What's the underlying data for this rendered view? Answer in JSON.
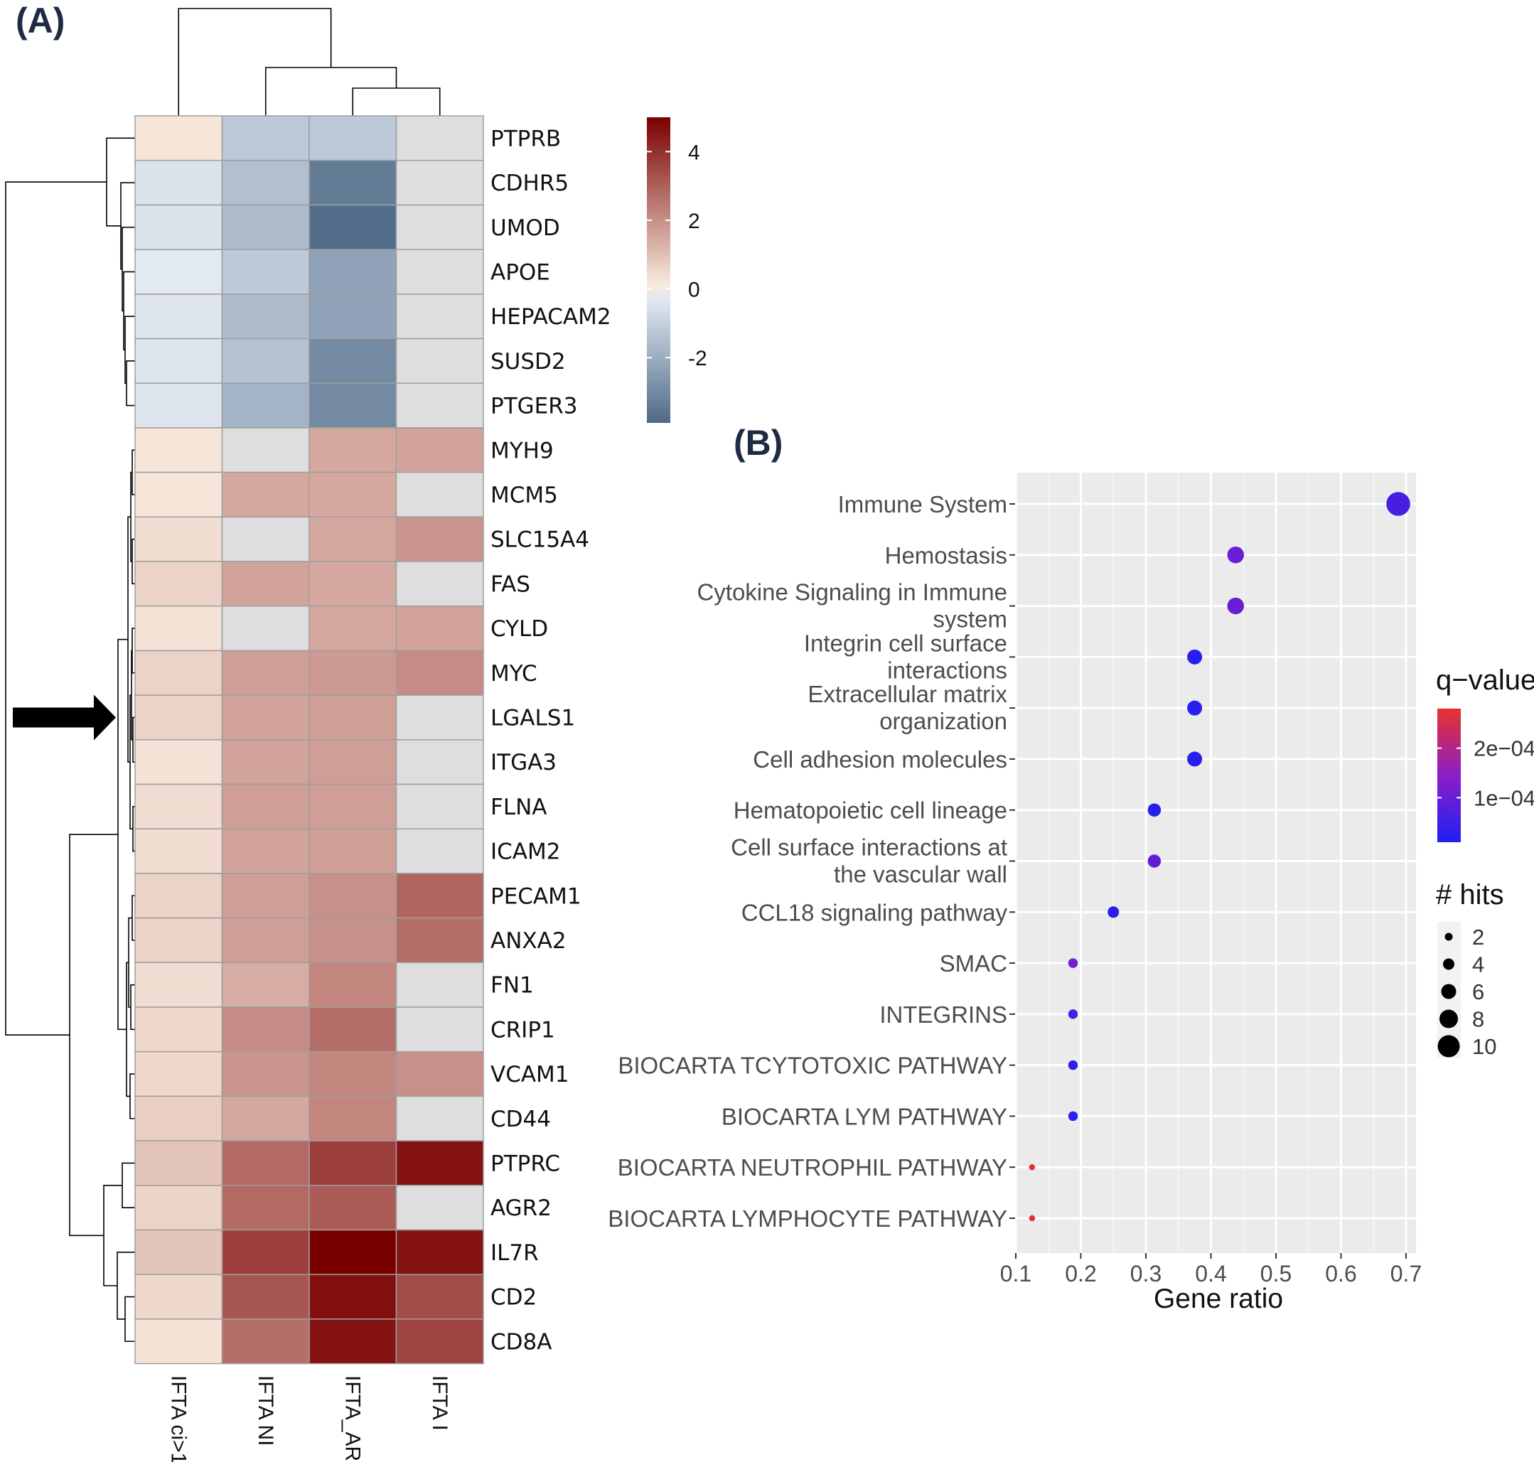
{
  "colors": {
    "panel_label": "#1f2a44",
    "heat_low": "#4e6a87",
    "heat_mid": "#fbf0e3",
    "heat_mid_blue": "#eef3fb",
    "heat_high": "#7a0000",
    "grid_bg": "#ebebeb",
    "q_high": "#e8322c",
    "q_low": "#1f1ff2",
    "arrow": "#000000"
  },
  "chart_data": [
    {
      "panel_label": "(A)",
      "type": "heatmap",
      "title": "",
      "columns": [
        "IFTA ci>1",
        "IFTA NI",
        "IFTA_AR",
        "IFTA I"
      ],
      "rows": [
        "PTPRB",
        "CDHR5",
        "UMOD",
        "APOE",
        "HEPACAM2",
        "SUSD2",
        "PTGER3",
        "MYH9",
        "MCM5",
        "SLC15A4",
        "FAS",
        "CYLD",
        "MYC",
        "LGALS1",
        "ITGA3",
        "FLNA",
        "ICAM2",
        "PECAM1",
        "ANXA2",
        "FN1",
        "CRIP1",
        "VCAM1",
        "CD44",
        "PTPRC",
        "AGR2",
        "IL7R",
        "CD2",
        "CD8A"
      ],
      "values": [
        [
          0.2,
          -1.2,
          -1.2,
          null
        ],
        [
          -0.5,
          -1.5,
          -3.4,
          null
        ],
        [
          -0.5,
          -1.6,
          -3.8,
          null
        ],
        [
          -0.3,
          -1.2,
          -2.3,
          null
        ],
        [
          -0.4,
          -1.6,
          -2.3,
          null
        ],
        [
          -0.4,
          -1.4,
          -3.0,
          null
        ],
        [
          -0.4,
          -1.8,
          -3.0,
          null
        ],
        [
          0.2,
          null,
          1.5,
          1.6
        ],
        [
          0.2,
          1.5,
          1.5,
          null
        ],
        [
          0.4,
          null,
          1.5,
          1.9
        ],
        [
          0.6,
          1.6,
          1.5,
          null
        ],
        [
          0.3,
          null,
          1.5,
          1.6
        ],
        [
          0.6,
          1.7,
          1.8,
          2.1
        ],
        [
          0.6,
          1.6,
          1.7,
          null
        ],
        [
          0.3,
          1.6,
          1.7,
          null
        ],
        [
          0.4,
          1.7,
          1.7,
          null
        ],
        [
          0.4,
          1.6,
          1.7,
          null
        ],
        [
          0.6,
          1.7,
          2.0,
          2.9
        ],
        [
          0.6,
          1.7,
          2.0,
          2.7
        ],
        [
          0.4,
          1.4,
          2.2,
          null
        ],
        [
          0.5,
          2.1,
          2.7,
          null
        ],
        [
          0.5,
          1.9,
          2.2,
          2.0
        ],
        [
          0.7,
          1.5,
          2.2,
          null
        ],
        [
          0.9,
          2.8,
          3.7,
          4.6
        ],
        [
          0.6,
          2.8,
          3.1,
          null
        ],
        [
          0.9,
          3.7,
          5.0,
          4.6
        ],
        [
          0.5,
          3.2,
          4.7,
          3.4
        ],
        [
          0.3,
          2.7,
          4.6,
          3.6
        ]
      ],
      "missing_value_note": "null = grey cell",
      "color_scale": {
        "min": -3.9,
        "max": 5.0,
        "ticks": [
          4,
          2,
          0,
          -2
        ]
      },
      "highlight_row_arrow_at": "LGALS1",
      "dendrograms": {
        "rows": true,
        "columns": true
      }
    },
    {
      "panel_label": "(B)",
      "type": "scatter",
      "title": "",
      "xlabel": "Gene ratio",
      "ylabel": "",
      "xlim": [
        0.1,
        0.7
      ],
      "xticks": [
        "0.1",
        "0.2",
        "0.3",
        "0.4",
        "0.5",
        "0.6",
        "0.7"
      ],
      "categories": [
        [
          "Immune System"
        ],
        [
          "Hemostasis"
        ],
        [
          "Cytokine Signaling in Immune",
          "system"
        ],
        [
          "Integrin cell surface",
          "interactions"
        ],
        [
          "Extracellular matrix",
          "organization"
        ],
        [
          "Cell adhesion molecules"
        ],
        [
          "Hematopoietic cell lineage"
        ],
        [
          "Cell surface interactions at",
          "the vascular wall"
        ],
        [
          "CCL18 signaling pathway"
        ],
        [
          "SMAC"
        ],
        [
          "INTEGRINS"
        ],
        [
          "BIOCARTA TCYTOTOXIC PATHWAY"
        ],
        [
          "BIOCARTA LYM PATHWAY"
        ],
        [
          "BIOCARTA NEUTROPHIL PATHWAY"
        ],
        [
          "BIOCARTA LYMPHOCYTE PATHWAY"
        ]
      ],
      "points": [
        {
          "gene_ratio": 0.688,
          "q_value": 6e-05,
          "hits": 11
        },
        {
          "gene_ratio": 0.438,
          "q_value": 0.0001,
          "hits": 7
        },
        {
          "gene_ratio": 0.438,
          "q_value": 0.0001,
          "hits": 7
        },
        {
          "gene_ratio": 0.375,
          "q_value": 2e-05,
          "hits": 6
        },
        {
          "gene_ratio": 0.375,
          "q_value": 2e-05,
          "hits": 6
        },
        {
          "gene_ratio": 0.375,
          "q_value": 2e-05,
          "hits": 6
        },
        {
          "gene_ratio": 0.313,
          "q_value": 2e-05,
          "hits": 5
        },
        {
          "gene_ratio": 0.313,
          "q_value": 9e-05,
          "hits": 5
        },
        {
          "gene_ratio": 0.25,
          "q_value": 2e-05,
          "hits": 4
        },
        {
          "gene_ratio": 0.188,
          "q_value": 0.00011,
          "hits": 3
        },
        {
          "gene_ratio": 0.188,
          "q_value": 6e-05,
          "hits": 3
        },
        {
          "gene_ratio": 0.188,
          "q_value": 3e-05,
          "hits": 3
        },
        {
          "gene_ratio": 0.188,
          "q_value": 3e-05,
          "hits": 3
        },
        {
          "gene_ratio": 0.125,
          "q_value": 0.00027,
          "hits": 1
        },
        {
          "gene_ratio": 0.125,
          "q_value": 0.00027,
          "hits": 1
        }
      ],
      "legend_color": {
        "title": "q−value",
        "range": [
          1e-05,
          0.00028
        ],
        "ticks": [
          {
            "label": "2e−04",
            "value": 0.0002
          },
          {
            "label": "1e−04",
            "value": 0.0001
          }
        ]
      },
      "legend_size": {
        "title": "# hits",
        "entries": [
          2,
          4,
          6,
          8,
          10
        ]
      }
    }
  ]
}
